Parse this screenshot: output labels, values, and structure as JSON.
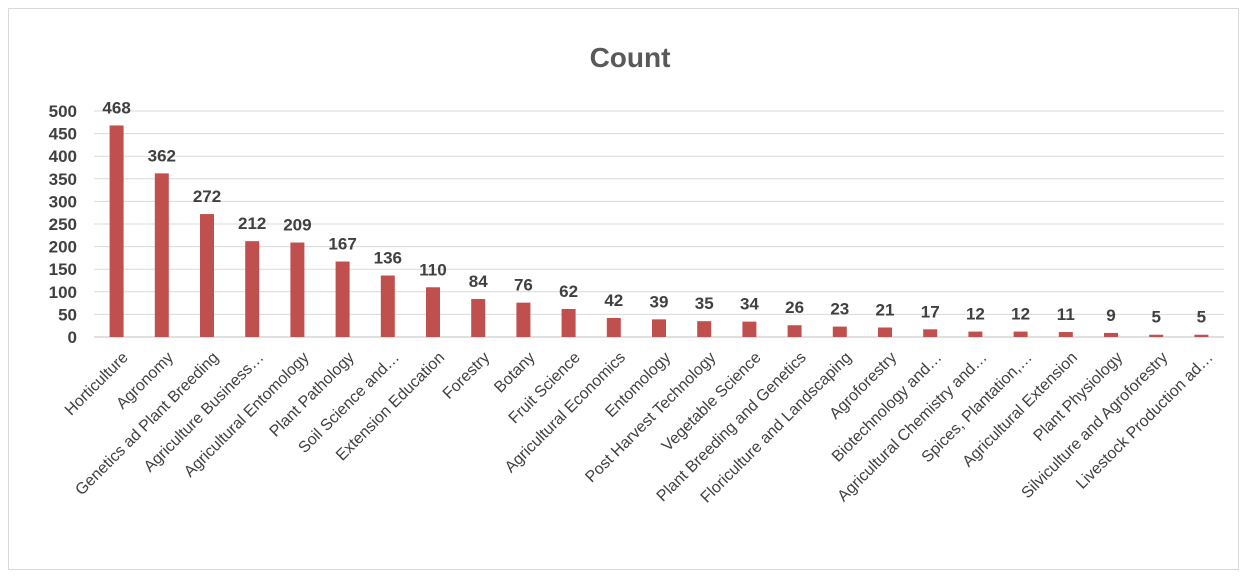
{
  "chart_data": {
    "type": "bar",
    "title": "Count",
    "xlabel": "",
    "ylabel": "",
    "ylim": [
      0,
      500
    ],
    "y_ticks": [
      0,
      50,
      100,
      150,
      200,
      250,
      300,
      350,
      400,
      450,
      500
    ],
    "grid": true,
    "legend": "none",
    "bar_color": "#c0504d",
    "categories": [
      "Horticulture",
      "Agronomy",
      "Genetics ad Plant Breeding",
      "Agriculture Business…",
      "Agricultural Entomology",
      "Plant Pathology",
      "Soil Science and…",
      "Extension Education",
      "Forestry",
      "Botany",
      "Fruit Science",
      "Agricultural Economics",
      "Entomology",
      "Post Harvest Technology",
      "Vegetable Science",
      "Plant Breeding and Genetics",
      "Floriculture and Landscaping",
      "Agroforestry",
      "Biotechnology and…",
      "Agricultural Chemistry and…",
      "Spices, Plantation,…",
      "Agricultural Extension",
      "Plant Physiology",
      "Silviculture and Agroforestry",
      "Livestock Production ad…"
    ],
    "values": [
      468,
      362,
      272,
      212,
      209,
      167,
      136,
      110,
      84,
      76,
      62,
      42,
      39,
      35,
      34,
      26,
      23,
      21,
      17,
      12,
      12,
      11,
      9,
      5,
      5
    ]
  }
}
